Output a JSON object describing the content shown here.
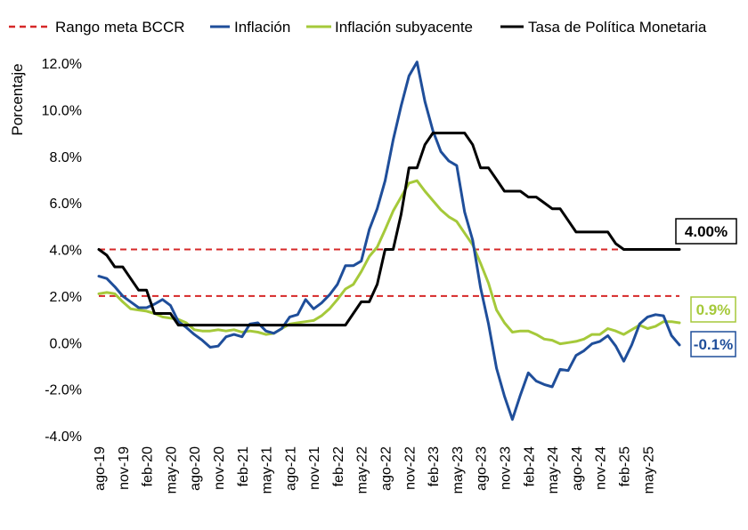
{
  "chart_data": {
    "type": "line",
    "title": "",
    "xlabel": "",
    "ylabel": "Porcentaje",
    "ylim": [
      -4,
      12
    ],
    "yticks": [
      "-4.0%",
      "-2.0%",
      "0.0%",
      "2.0%",
      "4.0%",
      "6.0%",
      "8.0%",
      "10.0%",
      "12.0%"
    ],
    "x_tick_labels": [
      "ago-19",
      "nov-19",
      "feb-20",
      "may-20",
      "ago-20",
      "nov-20",
      "feb-21",
      "may-21",
      "ago-21",
      "nov-21",
      "feb-22",
      "may-22",
      "ago-22",
      "nov-22",
      "feb-23",
      "may-23",
      "ago-23",
      "nov-23",
      "feb-24",
      "may-24",
      "ago-24",
      "nov-24",
      "feb-25",
      "may-25"
    ],
    "x_start": "ago-19",
    "x_end": "may-25",
    "legend_position": "top",
    "grid": false,
    "target_band": {
      "name": "Rango meta BCCR",
      "lower": 2.0,
      "upper": 4.0,
      "color": "#D62828",
      "style": "dashed"
    },
    "series": [
      {
        "name": "Inflación",
        "color": "#1F4E9A",
        "end_label": "-0.1%",
        "values": [
          2.85,
          2.75,
          2.4,
          2.0,
          1.75,
          1.5,
          1.5,
          1.65,
          1.85,
          1.6,
          0.9,
          0.65,
          0.35,
          0.1,
          -0.2,
          -0.15,
          0.25,
          0.35,
          0.25,
          0.8,
          0.85,
          0.5,
          0.4,
          0.6,
          1.1,
          1.2,
          1.85,
          1.45,
          1.7,
          2.05,
          2.5,
          3.3,
          3.3,
          3.5,
          4.85,
          5.75,
          6.95,
          8.7,
          10.15,
          11.45,
          12.05,
          10.35,
          9.1,
          8.2,
          7.8,
          7.6,
          5.6,
          4.4,
          2.35,
          0.8,
          -1.1,
          -2.3,
          -3.3,
          -2.25,
          -1.3,
          -1.65,
          -1.8,
          -1.9,
          -1.15,
          -1.2,
          -0.55,
          -0.35,
          -0.05,
          0.05,
          0.3,
          -0.15,
          -0.8,
          -0.1,
          0.8,
          1.1,
          1.2,
          1.15,
          0.3,
          -0.1
        ]
      },
      {
        "name": "Inflación subyacente",
        "color": "#A5C93A",
        "end_label": "0.9%",
        "values": [
          2.1,
          2.15,
          2.1,
          1.75,
          1.45,
          1.4,
          1.35,
          1.25,
          1.1,
          1.05,
          1.0,
          0.85,
          0.55,
          0.5,
          0.5,
          0.55,
          0.5,
          0.55,
          0.45,
          0.5,
          0.45,
          0.35,
          0.4,
          0.6,
          0.8,
          0.85,
          0.9,
          0.95,
          1.15,
          1.45,
          1.85,
          2.3,
          2.5,
          3.05,
          3.7,
          4.1,
          4.85,
          5.65,
          6.25,
          6.85,
          6.95,
          6.5,
          6.1,
          5.7,
          5.4,
          5.2,
          4.7,
          4.2,
          3.4,
          2.55,
          1.4,
          0.85,
          0.45,
          0.5,
          0.5,
          0.35,
          0.15,
          0.1,
          -0.05,
          0.0,
          0.05,
          0.15,
          0.35,
          0.35,
          0.6,
          0.5,
          0.35,
          0.55,
          0.75,
          0.6,
          0.7,
          0.9,
          0.9,
          0.85
        ]
      },
      {
        "name": "Tasa de Política Monetaria",
        "color": "#000000",
        "end_label": "4.00%",
        "values": [
          4.0,
          3.75,
          3.25,
          3.25,
          2.75,
          2.25,
          2.25,
          1.25,
          1.25,
          1.25,
          0.75,
          0.75,
          0.75,
          0.75,
          0.75,
          0.75,
          0.75,
          0.75,
          0.75,
          0.75,
          0.75,
          0.75,
          0.75,
          0.75,
          0.75,
          0.75,
          0.75,
          0.75,
          0.75,
          0.75,
          0.75,
          0.75,
          1.25,
          1.75,
          1.75,
          2.5,
          4.0,
          4.0,
          5.5,
          7.5,
          7.5,
          8.5,
          9.0,
          9.0,
          9.0,
          9.0,
          9.0,
          8.5,
          7.5,
          7.5,
          7.0,
          6.5,
          6.5,
          6.5,
          6.25,
          6.25,
          6.0,
          5.75,
          5.75,
          5.25,
          4.75,
          4.75,
          4.75,
          4.75,
          4.75,
          4.25,
          4.0,
          4.0,
          4.0,
          4.0,
          4.0,
          4.0,
          4.0,
          4.0
        ]
      }
    ]
  }
}
